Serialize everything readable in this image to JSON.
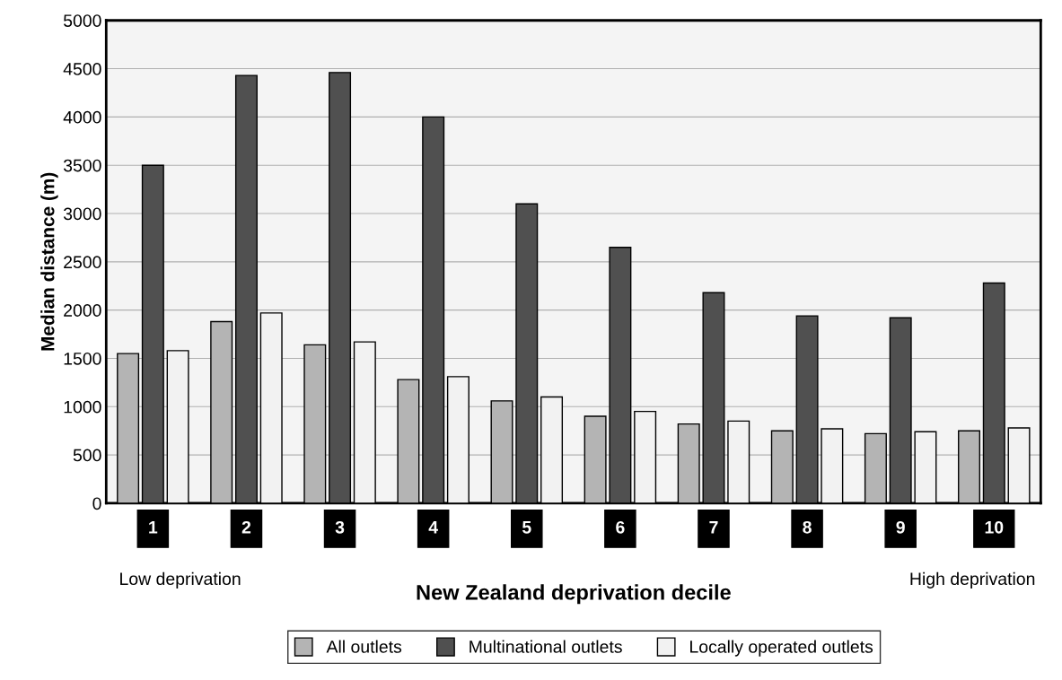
{
  "chart_data": {
    "type": "bar",
    "xlabel": "New Zealand deprivation decile",
    "ylabel": "Median distance (m)",
    "categories": [
      "1",
      "2",
      "3",
      "4",
      "5",
      "6",
      "7",
      "8",
      "9",
      "10"
    ],
    "series": [
      {
        "name": "All outlets",
        "color": "#b4b4b4",
        "values": [
          1550,
          1880,
          1640,
          1280,
          1060,
          900,
          820,
          750,
          720,
          750
        ]
      },
      {
        "name": "Multinational outlets",
        "color": "#505050",
        "values": [
          3500,
          4430,
          4460,
          4000,
          3100,
          2650,
          2180,
          1940,
          1920,
          2280
        ]
      },
      {
        "name": "Locally operated outlets",
        "color": "#f2f2f2",
        "values": [
          1580,
          1970,
          1670,
          1310,
          1100,
          950,
          850,
          770,
          740,
          780
        ]
      }
    ],
    "ylim": [
      0,
      5000
    ],
    "yticks": [
      0,
      500,
      1000,
      1500,
      2000,
      2500,
      3000,
      3500,
      4000,
      4500,
      5000
    ],
    "grid": "y",
    "legend": "bottom",
    "annotations": [
      "Low deprivation",
      "High deprivation"
    ]
  }
}
